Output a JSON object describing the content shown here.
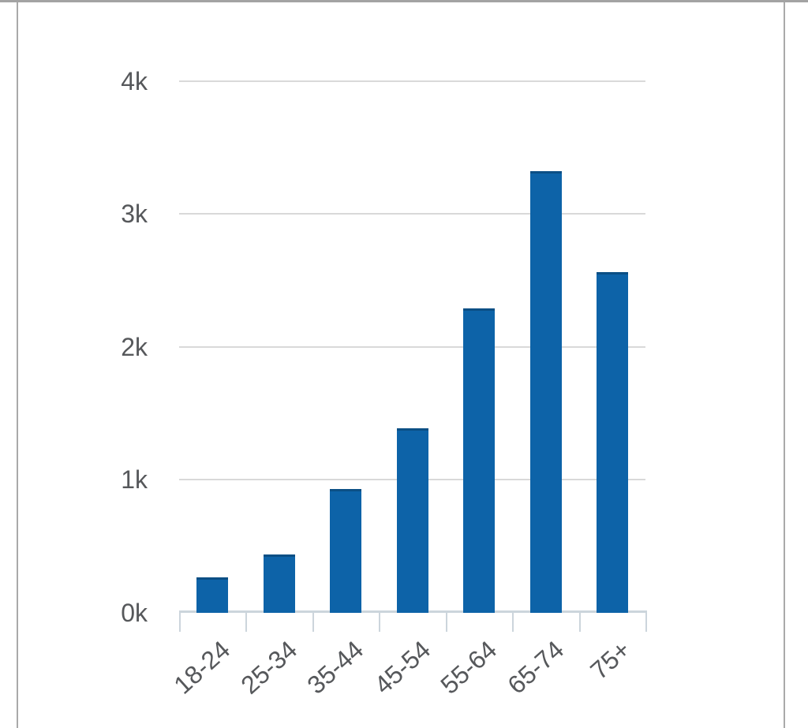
{
  "chart_data": {
    "type": "bar",
    "title": "",
    "xlabel": "",
    "ylabel": "",
    "categories": [
      "18-24",
      "25-34",
      "35-44",
      "45-54",
      "55-64",
      "65-74",
      "75+"
    ],
    "values": [
      265,
      440,
      930,
      1390,
      2290,
      3320,
      2560
    ],
    "ylim": [
      0,
      4000
    ],
    "y_ticks": [
      0,
      1000,
      2000,
      3000,
      4000
    ],
    "y_tick_labels": [
      "0k",
      "1k",
      "2k",
      "3k",
      "4k"
    ],
    "grid": true,
    "legend": "none",
    "bar_color": "#0d63a8",
    "bar_top_edge_color": "#0b4f85",
    "gridline_color": "#d9d9d9",
    "axis_color": "#ccd5dc",
    "label_color": "#56585b"
  }
}
